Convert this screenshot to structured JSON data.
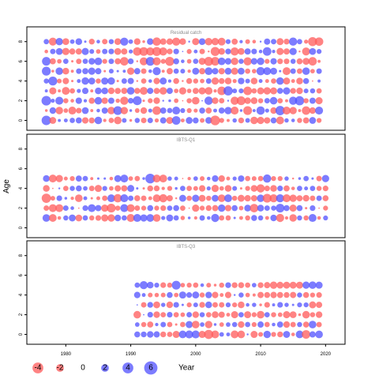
{
  "chart_data": {
    "type": "scatter",
    "subtype": "bubble",
    "ylabel": "Age",
    "x_ticks": [
      1980,
      1990,
      2000,
      2010,
      2020
    ],
    "y_ticks": [
      0,
      2,
      4,
      6,
      8
    ],
    "colors": {
      "positive": "#5050ff",
      "negative": "#ff5a5a"
    },
    "legend": {
      "values": [
        -4,
        -2,
        0,
        2,
        4,
        6
      ],
      "labels": [
        "-4",
        "-2",
        "0",
        "2",
        "4",
        "6"
      ],
      "title": "Year"
    },
    "panels": [
      {
        "title": "Residual catch",
        "x_range": [
          1977,
          2019
        ],
        "ages": [
          0,
          1,
          2,
          3,
          4,
          5,
          6,
          7,
          8
        ],
        "xlim": [
          1974,
          2023
        ],
        "ylim": [
          -1,
          9.5
        ],
        "residuals": [
          [
            4.7,
            -2.5,
            0.5,
            0.8,
            1.5,
            2.0,
            -2.2,
            -1.9,
            3.0,
            -0.6,
            -1.5,
            -3.1,
            1.2,
            -0.4,
            1.4,
            -1.7,
            1.6,
            -0.9,
            2.1,
            -2.6,
            3.9,
            -0.8,
            2.5,
            1.9,
            -1.2,
            2.4,
            -5.0,
            -1.3,
            -0.5,
            1.0,
            -1.8,
            1.2,
            -3.0,
            -2.8,
            -2.2,
            1.9,
            -3.3,
            1.0,
            0.7,
            -1.4,
            -2.0,
            2.5,
            -1.3
          ],
          [
            -0.4,
            2.3,
            -3.0,
            -1.1,
            -3.3,
            -1.7,
            2.5,
            -0.5,
            0.7,
            2.1,
            -3.0,
            4.1,
            -2.9,
            0.4,
            -1.2,
            -2.3,
            0.9,
            -3.9,
            2.1,
            1.5,
            3.3,
            1.3,
            -1.3,
            -0.9,
            1.9,
            -2.0,
            0.8,
            2.0,
            2.9,
            -3.4,
            0.4,
            -4.1,
            0.5,
            3.7,
            0.9,
            -2.3,
            4.6,
            -3.4,
            -2.9,
            -0.5,
            -3.8,
            -2.3,
            3.4
          ],
          [
            4.9,
            0.9,
            3.4,
            -1.4,
            -0.7,
            2.2,
            0.6,
            -2.0,
            3.0,
            -2.2,
            2.1,
            -1.0,
            -3.6,
            1.7,
            4.2,
            -0.3,
            -1.3,
            -2.3,
            0.2,
            0.4,
            -1.1,
            -0.1,
            -1.4,
            -3.1,
            0.1,
            3.7,
            -2.3,
            -1.6,
            0.2,
            -3.5,
            -4.1,
            -2.3,
            -2.4,
            -1.4,
            1.6,
            3.0,
            -1.5,
            -0.5,
            3.5,
            4.5,
            -1.4,
            2.1,
            -2.7
          ],
          [
            0.5,
            -2.7,
            -0.5,
            -3.3,
            -1.5,
            0.9,
            2.2,
            -0.5,
            2.4,
            2.4,
            -2.3,
            -2.0,
            -2.1,
            3.1,
            -1.9,
            -3.3,
            2.1,
            -2.0,
            -3.0,
            2.1,
            -1.1,
            -2.8,
            -1.1,
            -2.0,
            -2.7,
            -3.1,
            -0.6,
            -3.9,
            4.5,
            1.2,
            1.3,
            -3.9,
            -1.5,
            -2.6,
            -2.9,
            -2.6,
            1.9,
            2.8,
            -1.8,
            -2.3,
            1.2,
            1.4,
            -1.5
          ],
          [
            1.4,
            4.2,
            -1.2,
            -2.2,
            -0.3,
            0.8,
            2.9,
            2.5,
            -1.4,
            2.7,
            2.9,
            -0.3,
            1.6,
            2.1,
            -0.2,
            -1.5,
            0.7,
            -2.2,
            2.6,
            0.6,
            -1.9,
            -0.2,
            -1.8,
            -1.4,
            -1.1,
            1.6,
            -2.8,
            -1.9,
            -2.4,
            -0.9,
            2.3,
            1.2,
            -2.4,
            0.8,
            -0.8,
            -1.5,
            3.0,
            -2.6,
            -0.8,
            -2.4,
            1.9,
            -0.1,
            0.5
          ],
          [
            4.2,
            -0.4,
            3.0,
            -2.4,
            -0.5,
            1.6,
            2.0,
            2.8,
            2.1,
            -0.3,
            1.2,
            0.3,
            0.5,
            -2.8,
            2.1,
            -1.6,
            0.7,
            3.5,
            -0.5,
            -2.1,
            1.5,
            1.2,
            -0.6,
            2.6,
            -2.1,
            3.2,
            2.2,
            -2.2,
            2.5,
            -2.7,
            2.5,
            -1.5,
            -1.1,
            3.7,
            3.3,
            2.6,
            0.3,
            -3.3,
            1.6,
            -1.6,
            3.0,
            -1.1,
            1.6
          ],
          [
            4.0,
            -2.0,
            -1.1,
            1.5,
            -0.3,
            -1.6,
            1.5,
            2.3,
            3.1,
            -1.3,
            1.6,
            -2.0,
            -3.8,
            1.8,
            -0.2,
            -3.4,
            4.1,
            -3.5,
            -1.3,
            -4.3,
            1.9,
            0.7,
            -1.1,
            1.5,
            -2.6,
            -4.3,
            -4.0,
            3.1,
            2.3,
            -2.9,
            1.4,
            -3.6,
            2.3,
            2.9,
            -1.3,
            2.2,
            -1.7,
            -1.7,
            1.4,
            -1.9,
            -2.6,
            -3.8,
            -0.5
          ],
          [
            -0.7,
            1.6,
            2.5,
            -2.8,
            -2.0,
            -2.1,
            2.7,
            1.2,
            -1.1,
            1.6,
            1.7,
            -2.5,
            -2.1,
            0.9,
            -3.8,
            -4.0,
            -3.6,
            -4.3,
            -3.5,
            -1.8,
            1.7,
            0.1,
            -1.3,
            0.8,
            -1.6,
            -0.2,
            -4.3,
            -2.3,
            1.8,
            -3.6,
            -2.4,
            2.1,
            1.7,
            0.7,
            3.9,
            0.6,
            -2.7,
            -2.1,
            2.8,
            -0.2,
            -3.4,
            2.5,
            1.3
          ],
          [
            1.5,
            -3.4,
            2.9,
            -2.5,
            1.1,
            2.4,
            0.3,
            -1.8,
            0.7,
            -1.6,
            1.4,
            -2.4,
            3.5,
            1.1,
            -2.3,
            -0.4,
            2.3,
            -3.7,
            -2.2,
            -2.2,
            -3.5,
            -2.3,
            0.2,
            -2.7,
            2.4,
            -3.0,
            -2.9,
            -3.2,
            1.3,
            -2.0,
            0.6,
            -1.2,
            -0.7,
            0.2,
            2.1,
            1.6,
            -2.6,
            -1.8,
            3.6,
            1.5,
            -0.9,
            -4.3,
            -3.8
          ]
        ]
      },
      {
        "title": "IBTS-Q1",
        "x_range": [
          1977,
          2020
        ],
        "ages": [
          1,
          2,
          3,
          4,
          5
        ],
        "xlim": [
          1974,
          2023
        ],
        "ylim": [
          -1,
          9.5
        ],
        "residuals": [
          [
            3.1,
            -3.2,
            -0.7,
            1.4,
            2.6,
            -2.5,
            1.5,
            -1.4,
            -1.7,
            -2.7,
            -2.9,
            2.3,
            1.5,
            -3.4,
            3.3,
            2.8,
            3.2,
            -3.1,
            0.9,
            2.6,
            1.5,
            -1.0,
            0.4,
            -0.6,
            1.6,
            0.7,
            3.5,
            -1.5,
            -1.5,
            0.3,
            -0.8,
            -1.4,
            1.9,
            1.4,
            -0.8,
            2.3,
            -3.5,
            -0.6,
            -3.0,
            1.4,
            -1.4,
            3.3,
            -0.7,
            1.3
          ],
          [
            -1.6,
            -3.3,
            -3.3,
            1.6,
            0.7,
            -0.1,
            1.7,
            3.3,
            2.1,
            -2.8,
            -4.1,
            -1.4,
            3.4,
            -3.3,
            -1.6,
            -1.3,
            1.9,
            -1.3,
            -1.7,
            1.5,
            1.9,
            -1.5,
            -0.1,
            -2.8,
            -1.3,
            -1.8,
            -2.0,
            2.9,
            -2.2,
            1.9,
            -1.1,
            2.4,
            -3.8,
            2.4,
            1.6,
            1.4,
            4.0,
            1.9,
            -2.7,
            1.9,
            -0.3,
            1.7,
            -0.1,
            -1.3
          ],
          [
            -4.6,
            -1.2,
            1.7,
            0.4,
            -0.6,
            -3.1,
            0.8,
            -0.3,
            -0.8,
            -1.6,
            3.2,
            -3.7,
            3.4,
            1.6,
            -1.9,
            -1.6,
            -0.8,
            -3.2,
            -3.6,
            -2.1,
            -0.2,
            2.6,
            -1.5,
            2.8,
            -2.5,
            -1.4,
            2.5,
            -3.1,
            3.2,
            -1.4,
            -2.6,
            -2.2,
            -2.1,
            3.0,
            -4.1,
            -3.5,
            3.5,
            -3.4,
            -2.9,
            -2.0,
            -2.3,
            -1.6,
            1.6,
            -1.9
          ],
          [
            -2.4,
            -0.1,
            0.2,
            -1.5,
            1.4,
            1.9,
            1.1,
            -1.6,
            -2.7,
            1.3,
            -1.1,
            -2.1,
            -2.1,
            2.6,
            0.3,
            -0.3,
            -1.9,
            -1.8,
            -0.6,
            -1.3,
            0.4,
            1.5,
            -1.5,
            -1.2,
            -2.2,
            0.9,
            -2.8,
            -1.1,
            -2.4,
            1.2,
            -0.3,
            -1.3,
            -2.4,
            -3.6,
            -1.7,
            -2.4,
            1.7,
            -2.0,
            -0.7,
            1.5,
            0.8,
            1.5,
            -1.4,
            -1.7
          ],
          [
            2.4,
            -3.3,
            -2.8,
            -0.8,
            -1.3,
            2.0,
            1.5,
            -0.5,
            0.3,
            0.3,
            -0.7,
            2.6,
            3.3,
            -1.1,
            -1.5,
            0.4,
            5.0,
            -3.3,
            -3.3,
            1.0,
            0.8,
            -0.1,
            -0.6,
            1.1,
            -1.2,
            0.7,
            2.3,
            -2.3,
            -0.8,
            0.9,
            2.2,
            -1.5,
            -1.2,
            -1.5,
            3.6,
            -1.3,
            -1.3,
            1.0,
            -0.2,
            0.4,
            1.5,
            0.3,
            -1.6,
            2.8
          ]
        ]
      },
      {
        "title": "IBTS-Q3",
        "x_range": [
          1991,
          2019
        ],
        "ages": [
          0,
          1,
          2,
          3,
          4,
          5
        ],
        "xlim": [
          1974,
          2023
        ],
        "ylim": [
          -1,
          9.5
        ],
        "residuals": [
          [
            1.9,
            1.8,
            2.3,
            2.1,
            -1.8,
            -1.5,
            -2.7,
            3.1,
            3.4,
            3.4,
            -2.7,
            -4.5,
            -3.3,
            1.1,
            0.8,
            -3.3,
            -3.1,
            0.2,
            -2.7,
            -1.2,
            2.9,
            -1.3,
            -1.8,
            2.6,
            -0.7,
            3.1,
            -3.9,
            2.1,
            3.1
          ],
          [
            1.1,
            -1.4,
            -2.0,
            0.6,
            1.6,
            -1.5,
            -0.3,
            -1.5,
            2.7,
            -3.1,
            1.1,
            -2.9,
            0.4,
            -1.1,
            1.1,
            1.4,
            -2.3,
            1.5,
            -1.3,
            2.1,
            -1.5,
            0.7,
            2.0,
            -2.3,
            -1.6,
            1.4,
            -1.9,
            3.1,
            -1.6
          ],
          [
            -3.0,
            0.1,
            1.7,
            -2.3,
            -1.5,
            1.7,
            -1.5,
            -1.1,
            1.6,
            -2.3,
            1.4,
            -1.5,
            -2.4,
            -2.1,
            -0.8,
            -2.7,
            1.5,
            -2.6,
            -1.3,
            -3.1,
            1.5,
            -1.4,
            -1.1,
            -2.7,
            -2.5,
            -0.4,
            -3.0,
            -1.4,
            -2.3
          ],
          [
            0.1,
            -1.6,
            1.8,
            -2.5,
            1.0,
            -2.3,
            1.7,
            0.3,
            -1.3,
            1.2,
            -1.8,
            2.4,
            -1.6,
            -1.6,
            1.3,
            -1.3,
            -2.4,
            0.7,
            1.0,
            -0.4,
            -1.7,
            0.5,
            1.7,
            1.0,
            0.3,
            1.3,
            1.3,
            -2.6,
            -2.1
          ],
          [
            2.2,
            0.8,
            -1.2,
            -1.0,
            -1.2,
            1.9,
            -1.1,
            2.7,
            1.7,
            2.6,
            -1.4,
            2.3,
            -2.2,
            -0.8,
            -2.2,
            0.2,
            1.4,
            -1.1,
            -0.5,
            -2.1,
            -1.9,
            -2.2,
            -2.0,
            -1.8,
            -2.1,
            1.4,
            -1.9,
            -1.3,
            -1.7
          ],
          [
            1.5,
            3.5,
            2.4,
            1.3,
            -1.7,
            -1.4,
            4.1,
            -1.1,
            -1.3,
            -1.5,
            0.7,
            -1.2,
            -0.4,
            -1.4,
            1.8,
            -1.8,
            -1.9,
            -1.5,
            1.1,
            -1.8,
            -2.1,
            -2.9,
            -2.5,
            -2.6,
            -2.6,
            -2.6,
            2.8,
            3.0,
            2.7
          ]
        ]
      }
    ]
  }
}
